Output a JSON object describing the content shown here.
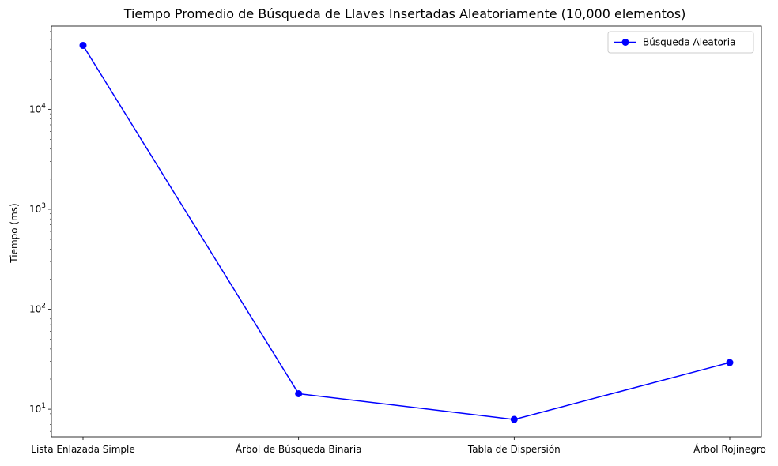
{
  "chart_data": {
    "type": "line",
    "title": "Tiempo Promedio de Búsqueda de Llaves Insertadas Aleatoriamente (10,000 elementos)",
    "xlabel": "",
    "ylabel": "Tiempo (ms)",
    "yscale": "log",
    "ylim": [
      5.3,
      68000
    ],
    "grid": false,
    "legend": "top-right",
    "categories": [
      "Lista Enlazada Simple",
      "Árbol de Búsqueda Binaria",
      "Tabla de Dispersión",
      "Árbol Rojinegro"
    ],
    "series": [
      {
        "name": "Búsqueda Aleatoria",
        "color": "#0000ff",
        "marker": "circle",
        "values": [
          43500,
          14.3,
          7.9,
          29.3
        ]
      }
    ],
    "yticks": [
      {
        "value": 10,
        "base": "10",
        "exp": "1"
      },
      {
        "value": 100,
        "base": "10",
        "exp": "2"
      },
      {
        "value": 1000,
        "base": "10",
        "exp": "3"
      },
      {
        "value": 10000,
        "base": "10",
        "exp": "4"
      }
    ]
  }
}
